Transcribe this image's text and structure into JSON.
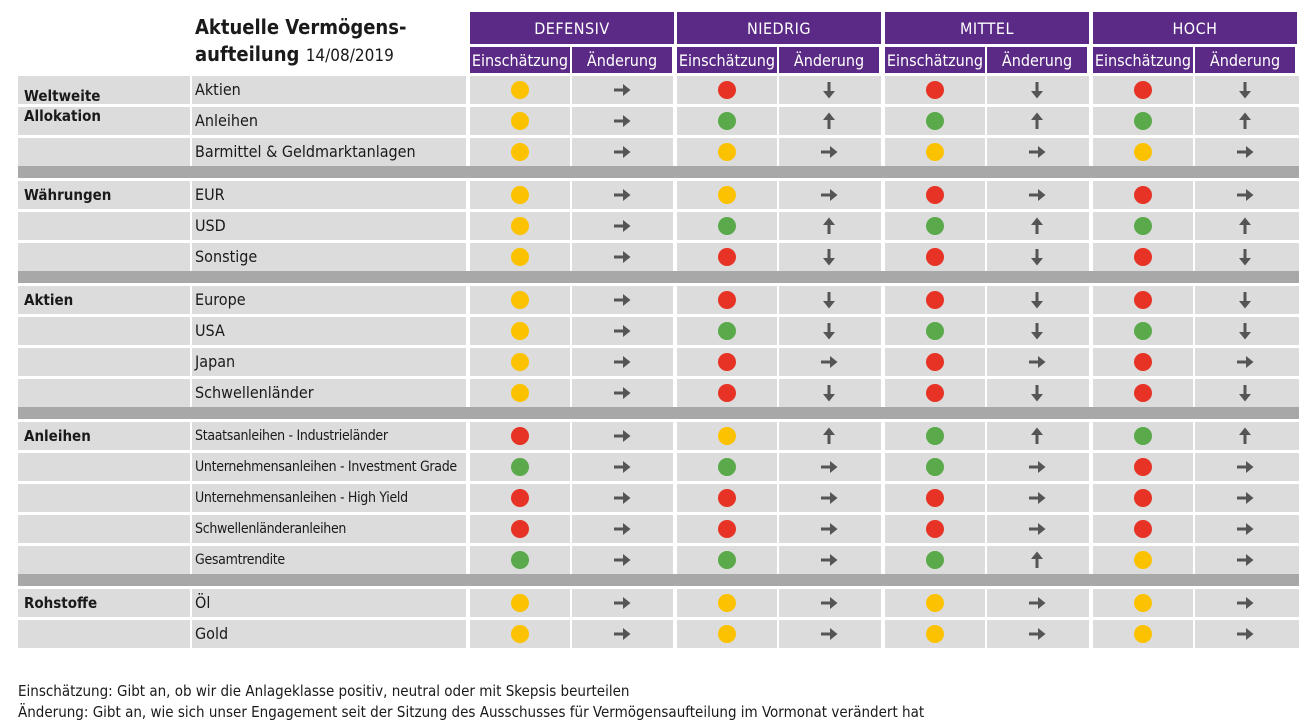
{
  "title": {
    "line1": "Aktuelle Vermögens-",
    "line2": "aufteilung",
    "date": "14/08/2019"
  },
  "profiles": [
    "DEFENSIV",
    "NIEDRIG",
    "MITTEL",
    "HOCH"
  ],
  "sub_headers": {
    "rating": "Einschätzung",
    "change": "Änderung"
  },
  "colors": {
    "header": "#5b2a86",
    "yellow": "#fcc200",
    "red": "#e63325",
    "green": "#5aa94a",
    "arrow": "#555555",
    "row": "#dcdcdc",
    "separator": "#a8a8a8"
  },
  "groups": [
    {
      "name": "Weltweite\nAllokation",
      "rows": [
        {
          "label": "Aktien",
          "cells": [
            [
              "yellow",
              "right"
            ],
            [
              "red",
              "down"
            ],
            [
              "red",
              "down"
            ],
            [
              "red",
              "down"
            ]
          ]
        },
        {
          "label": "Anleihen",
          "cells": [
            [
              "yellow",
              "right"
            ],
            [
              "green",
              "up"
            ],
            [
              "green",
              "up"
            ],
            [
              "green",
              "up"
            ]
          ]
        },
        {
          "label": "Barmittel & Geldmarktanlagen",
          "cells": [
            [
              "yellow",
              "right"
            ],
            [
              "yellow",
              "right"
            ],
            [
              "yellow",
              "right"
            ],
            [
              "yellow",
              "right"
            ]
          ]
        }
      ]
    },
    {
      "name": "Währungen",
      "rows": [
        {
          "label": "EUR",
          "cells": [
            [
              "yellow",
              "right"
            ],
            [
              "yellow",
              "right"
            ],
            [
              "red",
              "right"
            ],
            [
              "red",
              "right"
            ]
          ]
        },
        {
          "label": "USD",
          "cells": [
            [
              "yellow",
              "right"
            ],
            [
              "green",
              "up"
            ],
            [
              "green",
              "up"
            ],
            [
              "green",
              "up"
            ]
          ]
        },
        {
          "label": "Sonstige",
          "cells": [
            [
              "yellow",
              "right"
            ],
            [
              "red",
              "down"
            ],
            [
              "red",
              "down"
            ],
            [
              "red",
              "down"
            ]
          ]
        }
      ]
    },
    {
      "name": "Aktien",
      "rows": [
        {
          "label": "Europe",
          "cells": [
            [
              "yellow",
              "right"
            ],
            [
              "red",
              "down"
            ],
            [
              "red",
              "down"
            ],
            [
              "red",
              "down"
            ]
          ]
        },
        {
          "label": "USA",
          "cells": [
            [
              "yellow",
              "right"
            ],
            [
              "green",
              "down"
            ],
            [
              "green",
              "down"
            ],
            [
              "green",
              "down"
            ]
          ]
        },
        {
          "label": "Japan",
          "cells": [
            [
              "yellow",
              "right"
            ],
            [
              "red",
              "right"
            ],
            [
              "red",
              "right"
            ],
            [
              "red",
              "right"
            ]
          ]
        },
        {
          "label": "Schwellenländer",
          "cells": [
            [
              "yellow",
              "right"
            ],
            [
              "red",
              "down"
            ],
            [
              "red",
              "down"
            ],
            [
              "red",
              "down"
            ]
          ]
        }
      ]
    },
    {
      "name": "Anleihen",
      "rows": [
        {
          "label": "Staatsanleihen - Industrieländer",
          "small": true,
          "cells": [
            [
              "red",
              "right"
            ],
            [
              "yellow",
              "up"
            ],
            [
              "green",
              "up"
            ],
            [
              "green",
              "up"
            ]
          ]
        },
        {
          "label": "Unternehmensanleihen - Investment Grade",
          "small": true,
          "cells": [
            [
              "green",
              "right"
            ],
            [
              "green",
              "right"
            ],
            [
              "green",
              "right"
            ],
            [
              "red",
              "right"
            ]
          ]
        },
        {
          "label": "Unternehmensanleihen - High Yield",
          "small": true,
          "cells": [
            [
              "red",
              "right"
            ],
            [
              "red",
              "right"
            ],
            [
              "red",
              "right"
            ],
            [
              "red",
              "right"
            ]
          ]
        },
        {
          "label": "Schwellenländeranleihen",
          "small": true,
          "cells": [
            [
              "red",
              "right"
            ],
            [
              "red",
              "right"
            ],
            [
              "red",
              "right"
            ],
            [
              "red",
              "right"
            ]
          ]
        },
        {
          "label": "Gesamtrendite",
          "small": true,
          "cells": [
            [
              "green",
              "right"
            ],
            [
              "green",
              "right"
            ],
            [
              "green",
              "up"
            ],
            [
              "yellow",
              "right"
            ]
          ]
        }
      ]
    },
    {
      "name": "Rohstoffe",
      "rows": [
        {
          "label": "Öl",
          "cells": [
            [
              "yellow",
              "right"
            ],
            [
              "yellow",
              "right"
            ],
            [
              "yellow",
              "right"
            ],
            [
              "yellow",
              "right"
            ]
          ]
        },
        {
          "label": "Gold",
          "cells": [
            [
              "yellow",
              "right"
            ],
            [
              "yellow",
              "right"
            ],
            [
              "yellow",
              "right"
            ],
            [
              "yellow",
              "right"
            ]
          ]
        }
      ]
    }
  ],
  "footnotes": [
    "Einschätzung: Gibt an, ob wir die Anlageklasse positiv, neutral oder mit Skepsis beurteilen",
    "Änderung: Gibt an, wie sich unser Engagement seit der Sitzung des Ausschusses für Vermögensaufteilung im Vormonat verändert hat"
  ]
}
